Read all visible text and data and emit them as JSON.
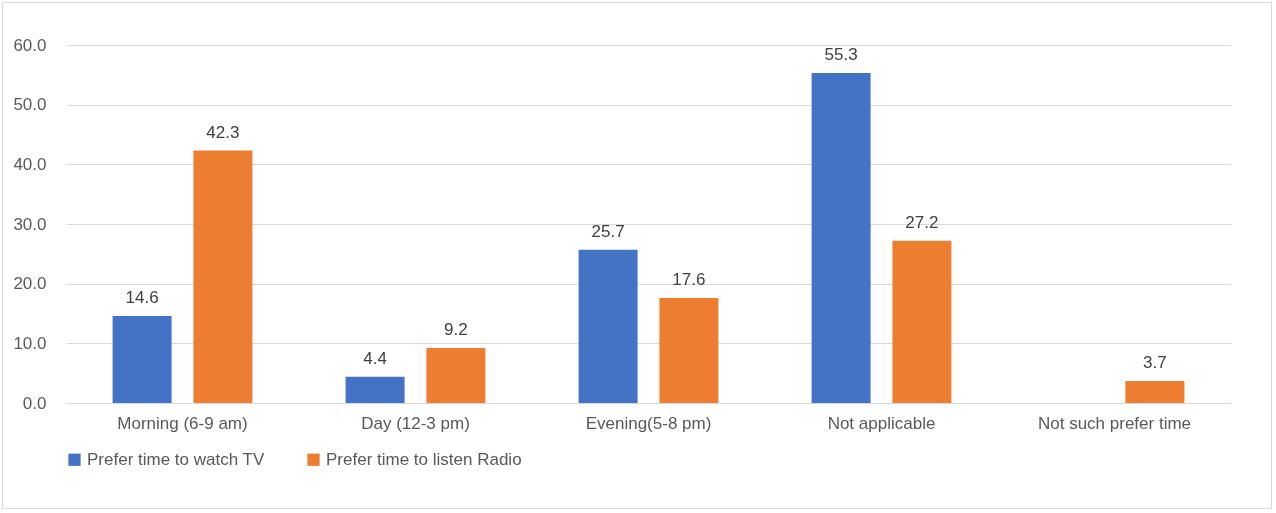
{
  "chart_data": {
    "type": "bar",
    "categories": [
      "Morning (6-9 am)",
      "Day (12-3 pm)",
      "Evening(5-8 pm)",
      "Not applicable",
      "Not such prefer time"
    ],
    "series": [
      {
        "name": "Prefer time to watch TV",
        "color": "#4472c4",
        "values": [
          14.6,
          4.4,
          25.7,
          55.3,
          null
        ]
      },
      {
        "name": "Prefer time to listen Radio",
        "color": "#ed7d31",
        "values": [
          42.3,
          9.2,
          17.6,
          27.2,
          3.7
        ]
      }
    ],
    "ylim": [
      0,
      60
    ],
    "yticks": [
      {
        "value": 0,
        "label": "0.0"
      },
      {
        "value": 10,
        "label": "10.0"
      },
      {
        "value": 20,
        "label": "20.0"
      },
      {
        "value": 30,
        "label": "30.0"
      },
      {
        "value": 40,
        "label": "40.0"
      },
      {
        "value": 50,
        "label": "50.0"
      },
      {
        "value": 60,
        "label": "60.0"
      }
    ],
    "grid": "y",
    "legend": "bottom",
    "data_labels": true
  }
}
